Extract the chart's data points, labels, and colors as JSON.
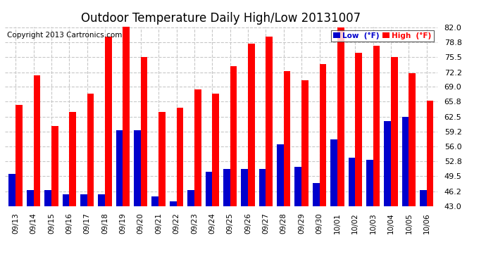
{
  "title": "Outdoor Temperature Daily High/Low 20131007",
  "copyright": "Copyright 2013 Cartronics.com",
  "legend_low": "Low  (°F)",
  "legend_high": "High  (°F)",
  "dates": [
    "09/13",
    "09/14",
    "09/15",
    "09/16",
    "09/17",
    "09/18",
    "09/19",
    "09/20",
    "09/21",
    "09/22",
    "09/23",
    "09/24",
    "09/25",
    "09/26",
    "09/27",
    "09/28",
    "09/29",
    "09/30",
    "10/01",
    "10/02",
    "10/03",
    "10/04",
    "10/05",
    "10/06"
  ],
  "highs": [
    65.0,
    71.5,
    60.5,
    63.5,
    67.5,
    80.0,
    83.0,
    75.5,
    63.5,
    64.5,
    68.5,
    67.5,
    73.5,
    78.5,
    80.0,
    72.5,
    70.5,
    74.0,
    82.0,
    76.5,
    78.0,
    75.5,
    72.0,
    66.0
  ],
  "lows": [
    50.0,
    46.5,
    46.5,
    45.5,
    45.5,
    45.5,
    59.5,
    59.5,
    45.0,
    44.0,
    46.5,
    50.5,
    51.0,
    51.0,
    51.0,
    56.5,
    51.5,
    48.0,
    57.5,
    53.5,
    53.0,
    61.5,
    62.5,
    46.5
  ],
  "high_color": "#ff0000",
  "low_color": "#0000cc",
  "bg_color": "#ffffff",
  "grid_color": "#c8c8c8",
  "ylim_min": 43.0,
  "ylim_max": 82.0,
  "yticks": [
    43.0,
    46.2,
    49.5,
    52.8,
    56.0,
    59.2,
    62.5,
    65.8,
    69.0,
    72.2,
    75.5,
    78.8,
    82.0
  ],
  "title_fontsize": 12,
  "copyright_fontsize": 7.5,
  "bar_width": 0.38
}
